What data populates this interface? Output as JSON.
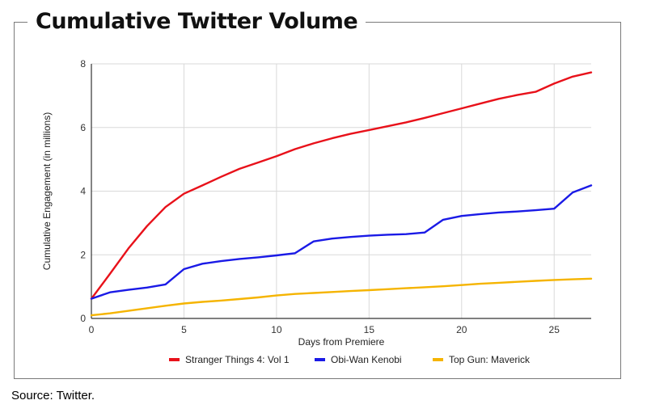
{
  "source_note": "Source: Twitter.",
  "chart_data": {
    "type": "line",
    "title": "Cumulative Twitter Volume",
    "xlabel": "Days from Premiere",
    "ylabel": "Cumulative Engagement (in millions)",
    "xlim": [
      0,
      27
    ],
    "ylim": [
      0,
      8
    ],
    "xticks": [
      "0",
      "5",
      "10",
      "15",
      "20",
      "25"
    ],
    "yticks": [
      "0",
      "2",
      "4",
      "6",
      "8"
    ],
    "grid": true,
    "legend_position": "bottom",
    "x": [
      0,
      1,
      2,
      3,
      4,
      5,
      6,
      7,
      8,
      9,
      10,
      11,
      12,
      13,
      14,
      15,
      16,
      17,
      18,
      19,
      20,
      21,
      22,
      23,
      24,
      25,
      26,
      27
    ],
    "series": [
      {
        "name": "Stranger Things 4: Vol 1",
        "color": "#e8111a",
        "values": [
          0.62,
          1.4,
          2.2,
          2.9,
          3.5,
          3.92,
          4.18,
          4.45,
          4.7,
          4.9,
          5.1,
          5.32,
          5.5,
          5.66,
          5.8,
          5.92,
          6.04,
          6.16,
          6.3,
          6.45,
          6.6,
          6.75,
          6.9,
          7.02,
          7.12,
          7.38,
          7.6,
          7.73
        ]
      },
      {
        "name": "Obi-Wan Kenobi",
        "color": "#1a1ae6",
        "values": [
          0.62,
          0.82,
          0.9,
          0.97,
          1.07,
          1.55,
          1.72,
          1.8,
          1.87,
          1.92,
          1.98,
          2.05,
          2.42,
          2.51,
          2.56,
          2.6,
          2.63,
          2.65,
          2.7,
          3.1,
          3.22,
          3.28,
          3.33,
          3.36,
          3.4,
          3.45,
          3.96,
          4.18
        ]
      },
      {
        "name": "Top Gun: Maverick",
        "color": "#f5b400",
        "values": [
          0.1,
          0.16,
          0.24,
          0.32,
          0.4,
          0.47,
          0.52,
          0.56,
          0.61,
          0.66,
          0.72,
          0.77,
          0.8,
          0.83,
          0.86,
          0.89,
          0.92,
          0.95,
          0.98,
          1.01,
          1.05,
          1.09,
          1.12,
          1.15,
          1.18,
          1.21,
          1.23,
          1.25
        ]
      }
    ]
  }
}
